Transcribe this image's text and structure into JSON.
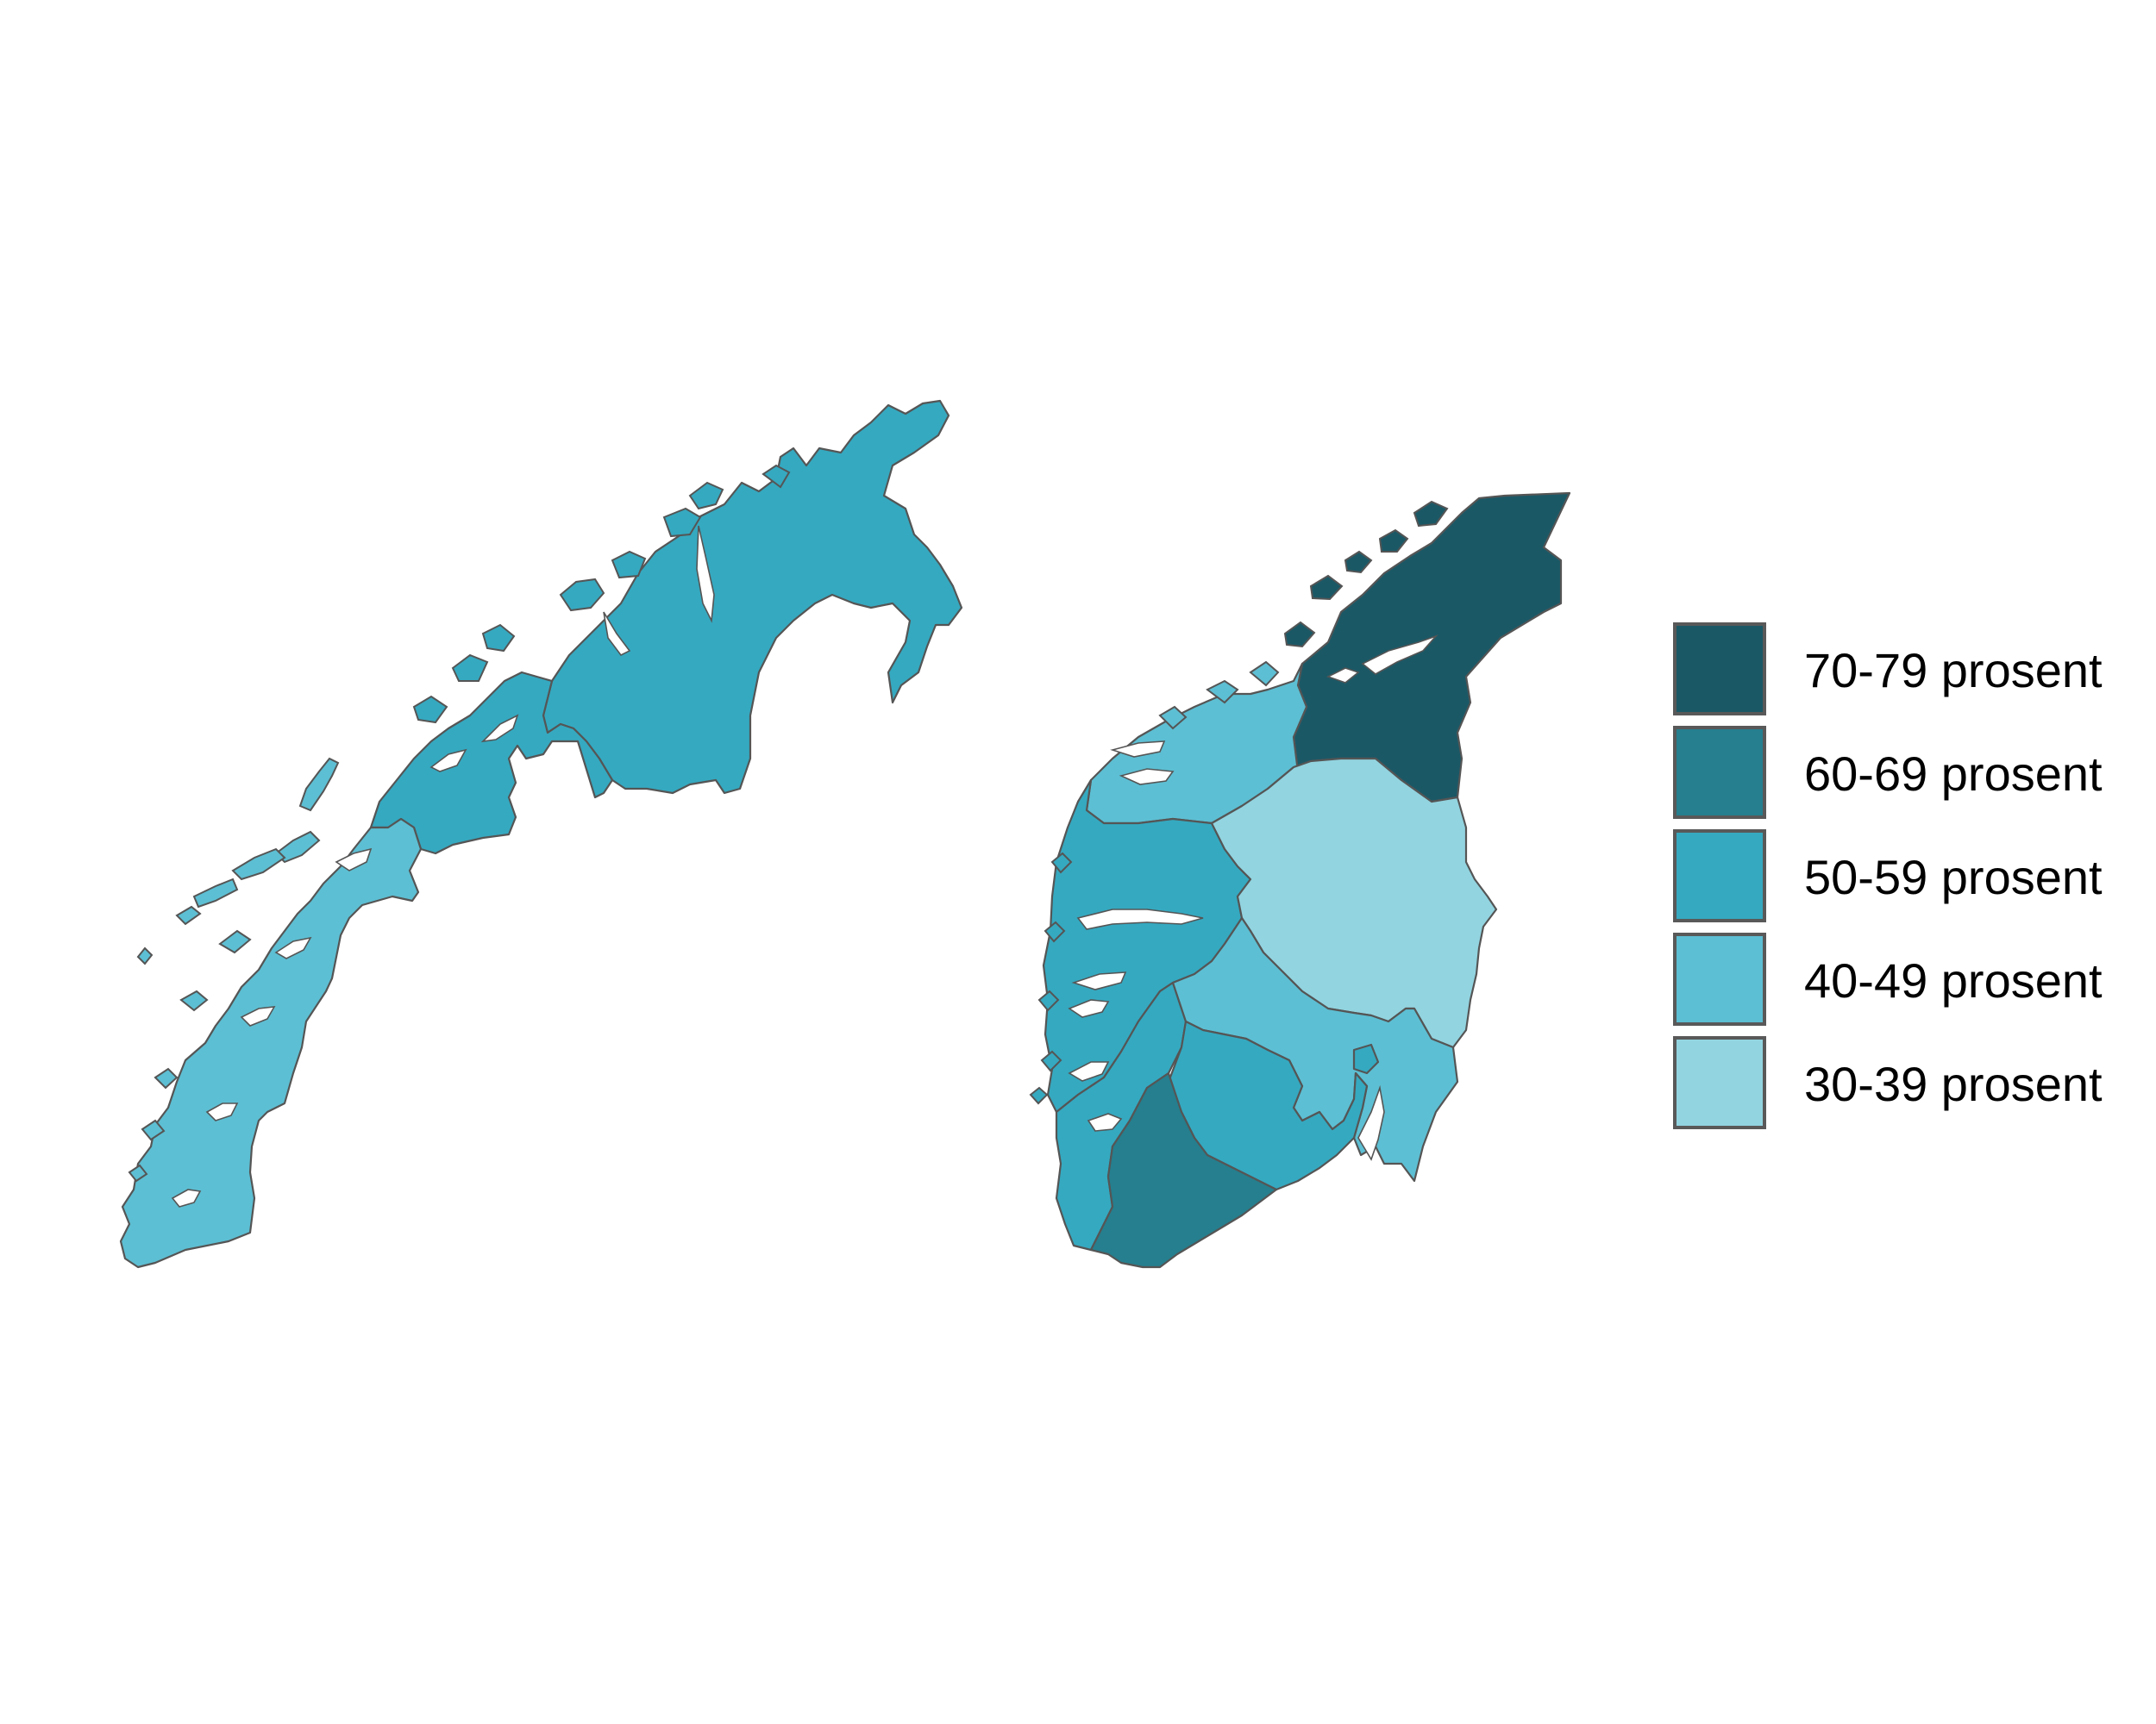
{
  "map": {
    "colors": {
      "c70": "#1b5866",
      "c60": "#257f8e",
      "c50": "#35a9c0",
      "c40": "#5dbfd3",
      "c30": "#92d4e0",
      "border": "#555555",
      "water": "#ffffff"
    },
    "regions": [
      {
        "name": "finnmark",
        "class": "50-59 prosent"
      },
      {
        "name": "troms",
        "class": "50-59 prosent"
      },
      {
        "name": "nordland",
        "class": "40-49 prosent"
      },
      {
        "name": "trondelag",
        "class": "70-79 prosent"
      },
      {
        "name": "more-og-romsdal",
        "class": "40-49 prosent"
      },
      {
        "name": "vestland",
        "class": "50-59 prosent"
      },
      {
        "name": "rogaland",
        "class": "50-59 prosent"
      },
      {
        "name": "innlandet",
        "class": "30-39 prosent"
      },
      {
        "name": "viken",
        "class": "40-49 prosent"
      },
      {
        "name": "vestfold-og-telemark",
        "class": "50-59 prosent"
      },
      {
        "name": "agder",
        "class": "60-69 prosent"
      },
      {
        "name": "oslo",
        "class": "50-59 prosent"
      }
    ]
  },
  "legend": {
    "items": [
      {
        "label": "70-79 prosent",
        "color": "#1b5866"
      },
      {
        "label": "60-69 prosent",
        "color": "#257f8e"
      },
      {
        "label": "50-59 prosent",
        "color": "#35a9c0"
      },
      {
        "label": "40-49 prosent",
        "color": "#5dbfd3"
      },
      {
        "label": "30-39 prosent",
        "color": "#92d4e0"
      }
    ]
  }
}
